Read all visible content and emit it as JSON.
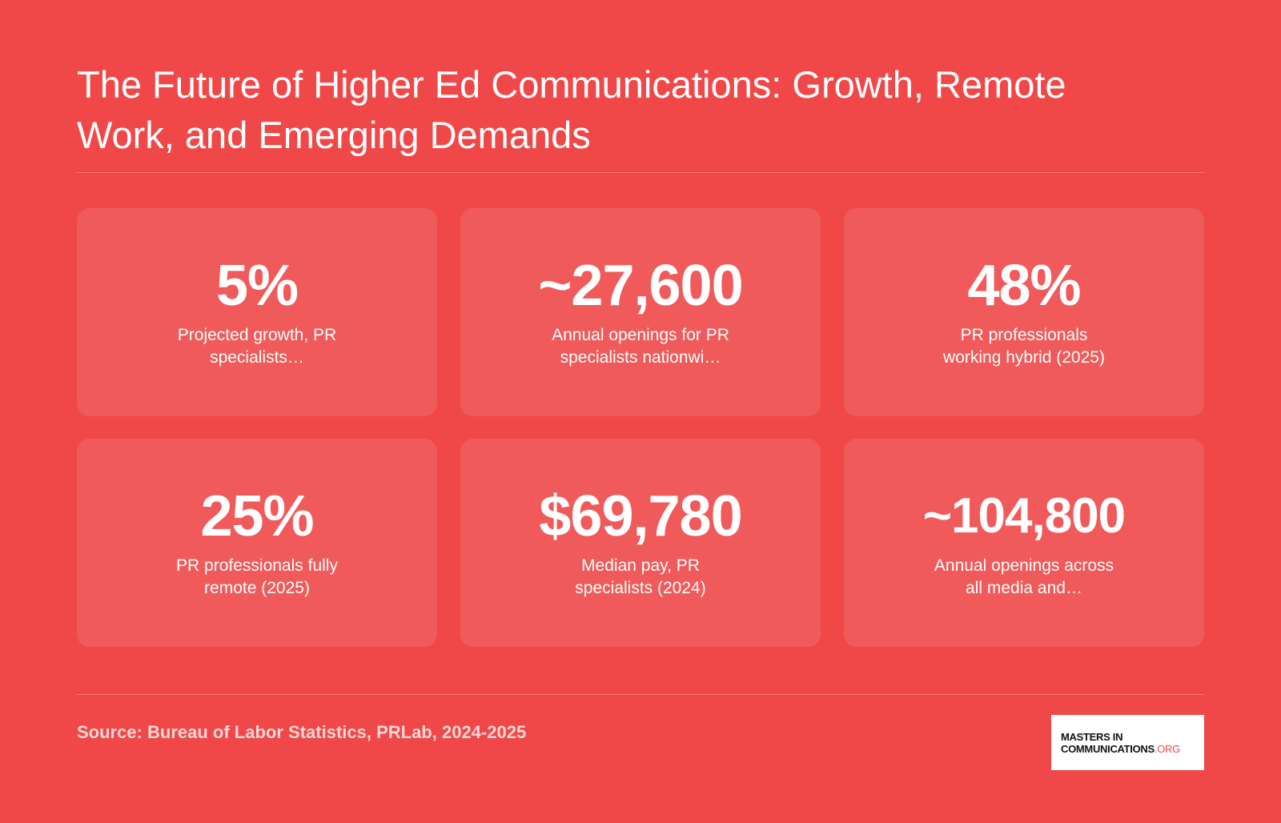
{
  "title": "The Future of Higher Ed Communications: Growth, Remote Work, and Emerging Demands",
  "stats": [
    {
      "value": "5%",
      "label": "Projected growth, PR specialists…"
    },
    {
      "value": "~27,600",
      "label": "Annual openings for PR specialists nationwi…"
    },
    {
      "value": "48%",
      "label": "PR professionals working hybrid (2025)"
    },
    {
      "value": "25%",
      "label": "PR professionals fully remote (2025)"
    },
    {
      "value": "$69,780",
      "label": "Median pay, PR specialists (2024)"
    },
    {
      "value": "~104,800",
      "label": "Annual openings across all media and…"
    }
  ],
  "source": "Source: Bureau of Labor Statistics, PRLab, 2024-2025",
  "logo": {
    "line1": "MASTERS IN",
    "line2": "COMMUNICATIONS",
    "line2_accent": ".ORG"
  },
  "colors": {
    "background": "#f04848",
    "text": "#ffffff",
    "logo_accent": "#f04848"
  }
}
